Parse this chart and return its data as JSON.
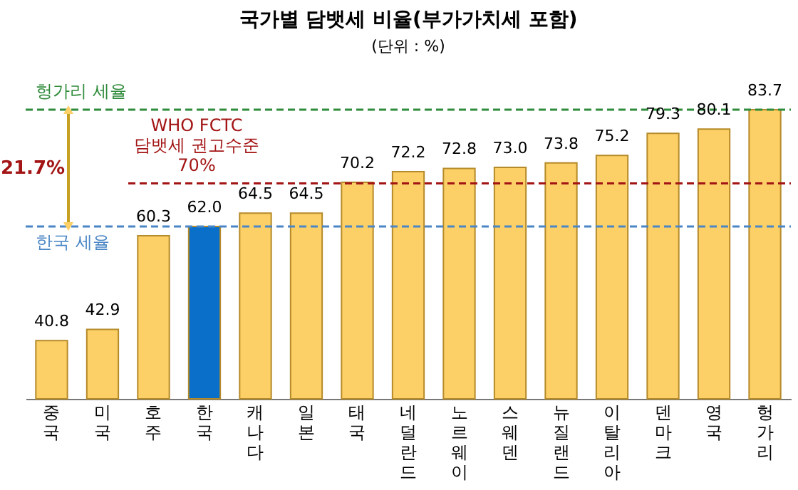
{
  "chart_data": {
    "type": "bar",
    "title": "국가별 담뱃세 비율(부가가치세 포함)",
    "subtitle": "(단위 : %)",
    "categories": [
      "중국",
      "미국",
      "호주",
      "한국",
      "캐나다",
      "일본",
      "태국",
      "네덜란드",
      "노르웨이",
      "스웨덴",
      "뉴질랜드",
      "이탈리아",
      "덴마크",
      "영국",
      "헝가리"
    ],
    "values": [
      40.8,
      42.9,
      60.3,
      62.0,
      64.5,
      64.5,
      70.2,
      72.2,
      72.8,
      73.0,
      73.8,
      75.2,
      79.3,
      80.1,
      83.7
    ],
    "colors": [
      "#fcd066",
      "#fcd066",
      "#fcd066",
      "#0a6fc8",
      "#fcd066",
      "#fcd066",
      "#fcd066",
      "#fcd066",
      "#fcd066",
      "#fcd066",
      "#fcd066",
      "#fcd066",
      "#fcd066",
      "#fcd066",
      "#fcd066"
    ],
    "ylim": [
      30,
      83.7
    ],
    "value_labels": [
      "40.8",
      "42.9",
      "60.3",
      "62.0",
      "64.5",
      "64.5",
      "70.2",
      "72.2",
      "72.8",
      "73.0",
      "73.8",
      "75.2",
      "79.3",
      "80.1",
      "83.7"
    ],
    "ref_lines": [
      {
        "axis": "y",
        "value": 83.7,
        "label": "헝가리 세율",
        "color": "#2e8b3a",
        "line_style": "dashed"
      },
      {
        "axis": "y",
        "value": 62.0,
        "label": "한국 세율",
        "color": "#4a86c5",
        "line_style": "dashed"
      },
      {
        "axis": "y",
        "value": 70,
        "label": "WHO FCTC\n담뱃세 권고수준\n70%",
        "color": "#a31515",
        "line_style": "dashed"
      }
    ],
    "annotations": [
      "21.7%"
    ]
  }
}
